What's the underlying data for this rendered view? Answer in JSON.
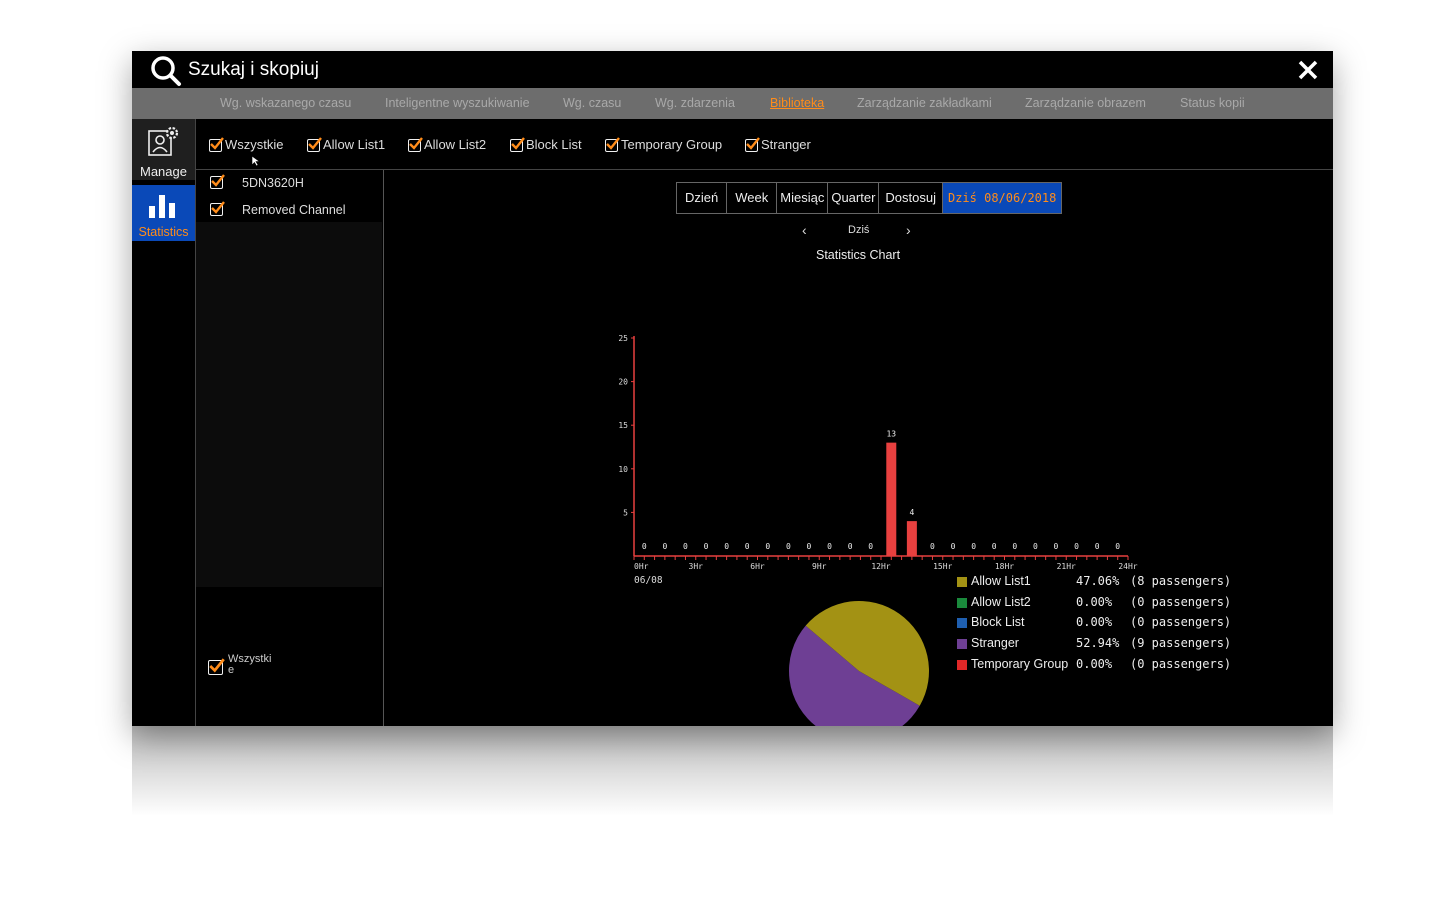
{
  "window": {
    "title": "Szukaj i skopiuj"
  },
  "tabs": [
    {
      "label": "Wg. wskazanego czasu",
      "active": false
    },
    {
      "label": "Inteligentne wyszukiwanie",
      "active": false
    },
    {
      "label": "Wg. czasu",
      "active": false
    },
    {
      "label": "Wg. zdarzenia",
      "active": false
    },
    {
      "label": "Biblioteka",
      "active": true
    },
    {
      "label": "Zarządzanie zakładkami",
      "active": false
    },
    {
      "label": "Zarządzanie obrazem",
      "active": false
    },
    {
      "label": "Status kopii",
      "active": false
    }
  ],
  "sidebar": {
    "items": [
      {
        "label": "Manage",
        "icon": "manage-icon"
      },
      {
        "label": "Statistics",
        "icon": "bar-chart-icon"
      }
    ]
  },
  "filters": [
    {
      "label": "Wszystkie",
      "checked": true
    },
    {
      "label": "Allow List1",
      "checked": true
    },
    {
      "label": "Allow List2",
      "checked": true
    },
    {
      "label": "Block List",
      "checked": true
    },
    {
      "label": "Temporary Group",
      "checked": true
    },
    {
      "label": "Stranger",
      "checked": true
    }
  ],
  "channels": [
    {
      "label": "5DN3620H",
      "checked": true
    },
    {
      "label": "Removed Channel",
      "checked": true
    }
  ],
  "channel_select_all": {
    "label": "Wszystki\ne",
    "checked": true
  },
  "period": {
    "buttons": [
      "Dzień",
      "Week",
      "Miesiąc",
      "Quarter",
      "Dostosuj"
    ],
    "today_label": "Dziś 08/06/2018",
    "nav_label": "Dziś"
  },
  "colors": {
    "accent": "#ff8c1a",
    "selected_blue": "#0a49b8",
    "bar": "#e8403f",
    "allow_list1": "#a39214",
    "allow_list2": "#1a8a3c",
    "block_list": "#1f5fb0",
    "stranger": "#6e3f94",
    "temporary_group": "#e02727"
  },
  "chart_data": [
    {
      "type": "bar",
      "title": "Statistics Chart",
      "x_date_label": "06/08",
      "x_tick_labels": [
        "0Hr",
        "3Hr",
        "6Hr",
        "9Hr",
        "12Hr",
        "15Hr",
        "18Hr",
        "21Hr",
        "24Hr"
      ],
      "ylim": [
        0,
        25
      ],
      "y_ticks": [
        5,
        10,
        15,
        20,
        25
      ],
      "hours": [
        0,
        1,
        2,
        3,
        4,
        5,
        6,
        7,
        8,
        9,
        10,
        11,
        12,
        13,
        14,
        15,
        16,
        17,
        18,
        19,
        20,
        21,
        22,
        23
      ],
      "values": [
        0,
        0,
        0,
        0,
        0,
        0,
        0,
        0,
        0,
        0,
        0,
        0,
        13,
        4,
        0,
        0,
        0,
        0,
        0,
        0,
        0,
        0,
        0,
        0
      ],
      "grid": false
    },
    {
      "type": "pie",
      "slices": [
        {
          "name": "Allow List1",
          "percent": "47.06%",
          "passengers": "(8 passengers)",
          "value": 8,
          "color_key": "allow_list1"
        },
        {
          "name": "Allow List2",
          "percent": "0.00%",
          "passengers": "(0 passengers)",
          "value": 0,
          "color_key": "allow_list2"
        },
        {
          "name": "Block List",
          "percent": "0.00%",
          "passengers": "(0 passengers)",
          "value": 0,
          "color_key": "block_list"
        },
        {
          "name": "Stranger",
          "percent": "52.94%",
          "passengers": "(9 passengers)",
          "value": 9,
          "color_key": "stranger"
        },
        {
          "name": "Temporary Group",
          "percent": "0.00%",
          "passengers": "(0 passengers)",
          "value": 0,
          "color_key": "temporary_group"
        }
      ],
      "legend_position": "right"
    }
  ]
}
